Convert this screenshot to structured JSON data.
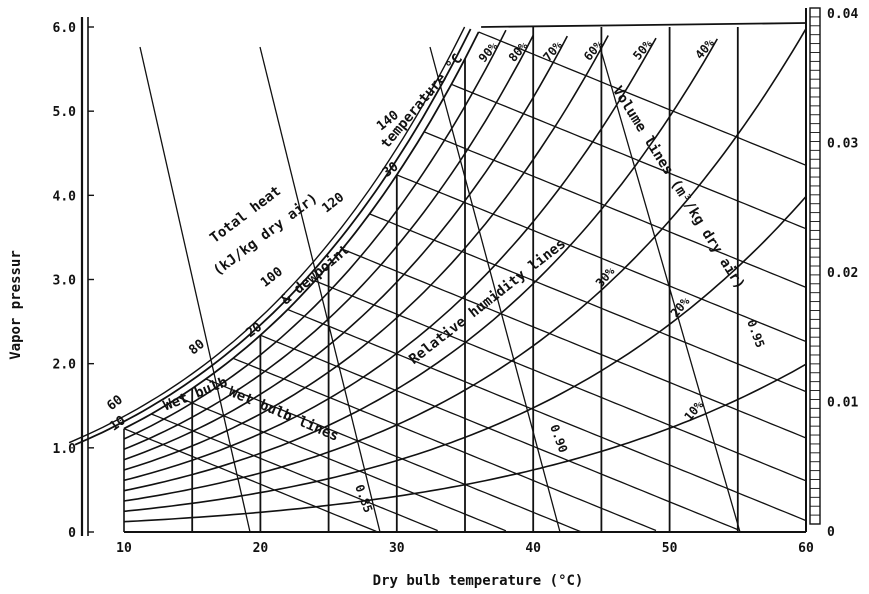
{
  "chart_data": {
    "type": "line",
    "xlabel": "Dry bulb temperature (°C)",
    "ylabel": "Vapor pressur",
    "xlim": [
      10,
      60
    ],
    "ylim": [
      0,
      6.0
    ],
    "y2lim": [
      0,
      0.04
    ],
    "grid": false,
    "legend": "none",
    "x_ticks": [
      "10",
      "20",
      "30",
      "40",
      "50",
      "60"
    ],
    "y_ticks": [
      "0",
      "1.0",
      "2.0",
      "3.0",
      "4.0",
      "5.0",
      "6.0"
    ],
    "y2_ticks": [
      "0",
      "0.01",
      "0.02",
      "0.03",
      "0.04"
    ],
    "rh_levels": [
      10,
      20,
      30,
      40,
      50,
      60,
      70,
      80,
      90
    ],
    "rh_labels": [
      "10%",
      "20%",
      "30%",
      "40%",
      "50%",
      "60%",
      "70%",
      "80%",
      "90%"
    ],
    "wet_bulb_values": [
      10,
      15,
      20,
      25,
      30,
      35
    ],
    "total_heat_ticks": [
      "60",
      "80",
      "100",
      "120",
      "140"
    ],
    "saturation_ticks": [
      "10",
      "20",
      "30"
    ],
    "volume_values": [
      0.85,
      0.9,
      0.95
    ],
    "volume_labels": [
      "0.85",
      "0.90",
      "0.95"
    ],
    "annotations": {
      "total_heat": "Total heat",
      "total_heat_unit": "(kJ/kg dry air)",
      "wet_bulb": "Wet bulb",
      "dewpoint": "& dewpoint",
      "temperature": "temperature °C",
      "wet_bulb_lines": "Wet bulb lines",
      "rh_lines": "Relative humidity lines",
      "volume_lines": "Volume lines (m³/kg dry air)"
    }
  }
}
